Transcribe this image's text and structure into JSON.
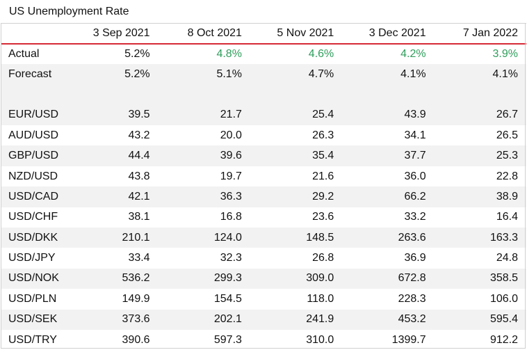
{
  "title": "US Unemployment Rate",
  "chart_data": {
    "type": "table",
    "title": "US Unemployment Rate",
    "columns": [
      "3 Sep 2021",
      "8 Oct 2021",
      "5 Nov 2021",
      "3 Dec 2021",
      "7 Jan 2022"
    ],
    "rows": [
      {
        "label": "Actual",
        "values": [
          "5.2%",
          "4.8%",
          "4.6%",
          "4.2%",
          "3.9%"
        ],
        "highlight": [
          false,
          true,
          true,
          true,
          true
        ]
      },
      {
        "label": "Forecast",
        "values": [
          "5.2%",
          "5.1%",
          "4.7%",
          "4.1%",
          "4.1%"
        ]
      },
      {
        "label": "EUR/USD",
        "values": [
          "39.5",
          "21.7",
          "25.4",
          "43.9",
          "26.7"
        ]
      },
      {
        "label": "AUD/USD",
        "values": [
          "43.2",
          "20.0",
          "26.3",
          "34.1",
          "26.5"
        ]
      },
      {
        "label": "GBP/USD",
        "values": [
          "44.4",
          "39.6",
          "35.4",
          "37.7",
          "25.3"
        ]
      },
      {
        "label": "NZD/USD",
        "values": [
          "43.8",
          "19.7",
          "21.6",
          "36.0",
          "22.8"
        ]
      },
      {
        "label": "USD/CAD",
        "values": [
          "42.1",
          "36.3",
          "29.2",
          "66.2",
          "38.9"
        ]
      },
      {
        "label": "USD/CHF",
        "values": [
          "38.1",
          "16.8",
          "23.6",
          "33.2",
          "16.4"
        ]
      },
      {
        "label": "USD/DKK",
        "values": [
          "210.1",
          "124.0",
          "148.5",
          "263.6",
          "163.3"
        ]
      },
      {
        "label": "USD/JPY",
        "values": [
          "33.4",
          "32.3",
          "26.8",
          "36.9",
          "24.8"
        ]
      },
      {
        "label": "USD/NOK",
        "values": [
          "536.2",
          "299.3",
          "309.0",
          "672.8",
          "358.5"
        ]
      },
      {
        "label": "USD/PLN",
        "values": [
          "149.9",
          "154.5",
          "118.0",
          "228.3",
          "106.0"
        ]
      },
      {
        "label": "USD/SEK",
        "values": [
          "373.6",
          "202.1",
          "241.9",
          "453.2",
          "595.4"
        ]
      },
      {
        "label": "USD/TRY",
        "values": [
          "390.6",
          "597.3",
          "310.0",
          "1399.7",
          "912.2"
        ]
      }
    ]
  },
  "colors": {
    "header_rule": "#d62b36",
    "positive_text": "#2e9e5b",
    "alt_row_bg": "#f2f2f2"
  }
}
